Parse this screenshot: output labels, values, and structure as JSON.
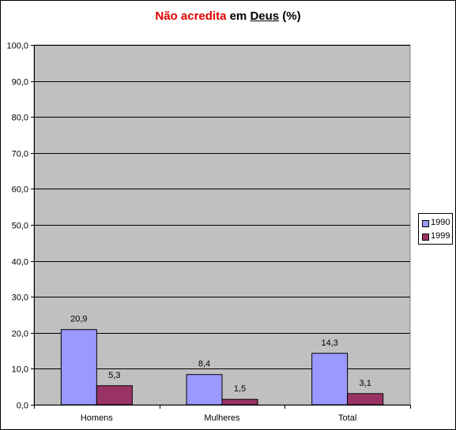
{
  "title": {
    "part1": "Não acredita",
    "part2": " em ",
    "part3": "Deus",
    "part4": " (%)"
  },
  "colors": {
    "title_accent": "#e00000",
    "plot_background": "#c0c0c0",
    "gridline": "#000000"
  },
  "chart_data": {
    "type": "bar",
    "title": "Não acredita em Deus (%)",
    "categories": [
      "Homens",
      "Mulheres",
      "Total"
    ],
    "series": [
      {
        "name": "1990",
        "values": [
          20.9,
          8.4,
          14.3
        ],
        "labels": [
          "20,9",
          "8,4",
          "14,3"
        ],
        "color": "#9999ff"
      },
      {
        "name": "1999",
        "values": [
          5.3,
          1.5,
          3.1
        ],
        "labels": [
          "5,3",
          "1,5",
          "3,1"
        ],
        "color": "#993366"
      }
    ],
    "ylim": [
      0,
      100
    ],
    "yticks": [
      "0,0",
      "10,0",
      "20,0",
      "30,0",
      "40,0",
      "50,0",
      "60,0",
      "70,0",
      "80,0",
      "90,0",
      "100,0"
    ],
    "xlabel": "",
    "ylabel": "",
    "grid": true,
    "legend_position": "right"
  }
}
